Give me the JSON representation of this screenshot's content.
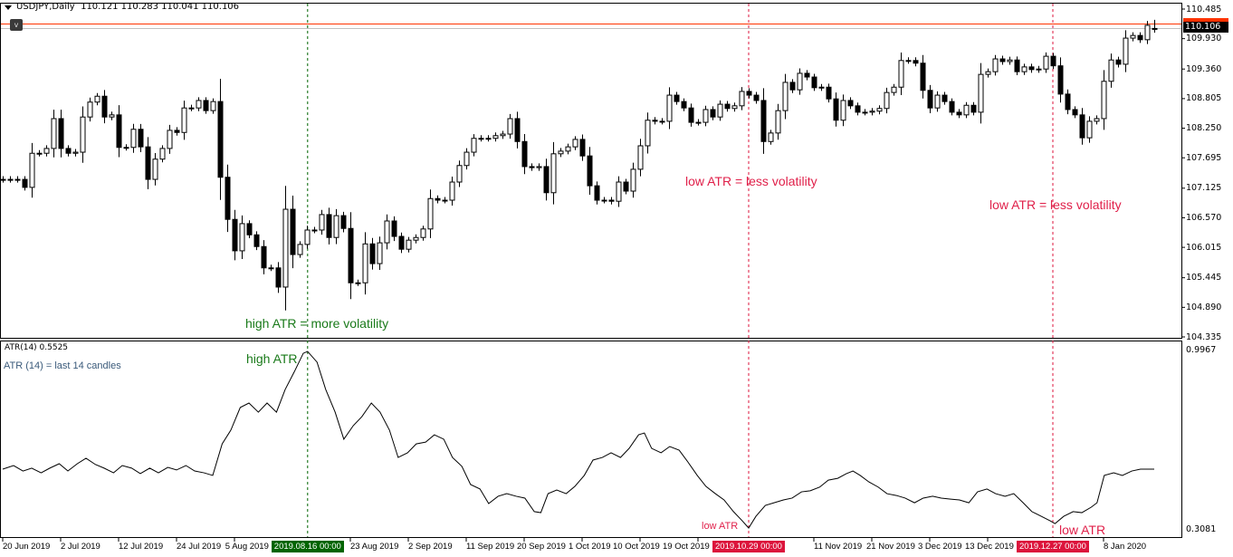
{
  "header": {
    "symbol_timeframe": "USDJPY,Daily",
    "ohlc": "110.121 110.283 110.041 110.106",
    "menu_button": "v"
  },
  "colors": {
    "ask_line": "#ff3300",
    "bid_line": "#c0c0c0",
    "green_marker": "#006400",
    "red_marker": "#dc143c",
    "annotation_green": "#1a7a1a",
    "annotation_red": "#e0204a"
  },
  "price_axis": {
    "ticks": [
      "110.485",
      "109.930",
      "109.360",
      "108.805",
      "108.250",
      "107.695",
      "107.125",
      "106.570",
      "106.015",
      "105.445",
      "104.890",
      "104.335"
    ],
    "current_bid": "110.106",
    "range": [
      104.335,
      110.485
    ]
  },
  "atr_pane": {
    "title": "ATR(14) 0.5525",
    "note": "ATR (14) = last 14 candles",
    "axis_ticks": [
      "0.9967",
      "0.3081"
    ],
    "range": [
      0.3081,
      0.9967
    ]
  },
  "time_axis": {
    "labels": [
      {
        "bar": 0,
        "text": "20 Jun 2019"
      },
      {
        "bar": 8,
        "text": "2 Jul 2019"
      },
      {
        "bar": 16,
        "text": "12 Jul 2019"
      },
      {
        "bar": 24,
        "text": "24 Jul 2019"
      },
      {
        "bar": 32,
        "text": "5 Aug 2019"
      },
      {
        "bar": 48,
        "text": "23 Aug 2019"
      },
      {
        "bar": 56,
        "text": "2 Sep 2019"
      },
      {
        "bar": 64,
        "text": "11 Sep 2019"
      },
      {
        "bar": 72,
        "text": "20 Sep 2019"
      },
      {
        "bar": 80,
        "text": "1 Oct 2019"
      },
      {
        "bar": 88,
        "text": "10 Oct 2019"
      },
      {
        "bar": 96,
        "text": "19 Oct 2019"
      },
      {
        "bar": 112,
        "text": "11 Nov 2019"
      },
      {
        "bar": 120,
        "text": "21 Nov 2019"
      },
      {
        "bar": 128,
        "text": "3 Dec 2019"
      },
      {
        "bar": 136,
        "text": "13 Dec 2019"
      },
      {
        "bar": 152,
        "text": "8 Jan 2020"
      }
    ],
    "markers": [
      {
        "bar": 42.1,
        "text": "2019.08.16 00:00",
        "color": "#006400"
      },
      {
        "bar": 103,
        "text": "2019.10.29 00:00",
        "color": "#dc143c"
      },
      {
        "bar": 145,
        "text": "2019.12.27 00:00",
        "color": "#dc143c"
      }
    ]
  },
  "annotations": {
    "high_vol": "high ATR = more volatility",
    "low_vol_1": "low ATR = less volatility",
    "low_vol_2": "low ATR = less volatility",
    "high_atr": "high ATR",
    "low_atr_1": "low ATR",
    "low_atr_2": "low ATR"
  },
  "chart_data": [
    {
      "type": "candlestick",
      "title": "USDJPY,Daily",
      "ylim": [
        104.335,
        110.485
      ],
      "last_bar": {
        "open": 110.121,
        "high": 110.283,
        "low": 110.041,
        "close": 110.106
      },
      "closes": [
        107.29,
        107.29,
        107.29,
        107.14,
        107.78,
        107.78,
        107.87,
        108.43,
        107.87,
        107.78,
        107.8,
        108.46,
        108.74,
        108.85,
        108.46,
        108.5,
        107.89,
        107.89,
        108.23,
        107.9,
        107.29,
        107.67,
        107.87,
        108.21,
        108.17,
        108.63,
        108.63,
        108.77,
        108.58,
        108.75,
        107.33,
        106.54,
        105.95,
        106.46,
        106.25,
        106.03,
        105.63,
        105.63,
        105.27,
        106.73,
        105.88,
        106.07,
        106.34,
        106.34,
        106.63,
        106.2,
        106.61,
        106.37,
        105.35,
        105.35,
        106.08,
        105.71,
        106.1,
        106.51,
        106.22,
        105.98,
        106.15,
        106.2,
        106.36,
        106.93,
        106.9,
        106.9,
        107.24,
        107.55,
        107.8,
        108.06,
        108.06,
        108.06,
        108.11,
        108.14,
        108.43,
        108.0,
        107.53,
        107.51,
        107.53,
        107.04,
        107.77,
        107.82,
        107.9,
        108.04,
        107.73,
        107.17,
        106.9,
        106.9,
        106.88,
        107.24,
        107.07,
        107.48,
        107.92,
        108.4,
        108.38,
        108.38,
        108.87,
        108.75,
        108.63,
        108.36,
        108.36,
        108.6,
        108.46,
        108.7,
        108.62,
        108.67,
        108.94,
        108.87,
        108.77,
        108.0,
        108.16,
        108.58,
        109.11,
        108.97,
        109.28,
        109.21,
        109.01,
        109.02,
        108.8,
        108.4,
        108.77,
        108.67,
        108.55,
        108.55,
        108.57,
        108.62,
        108.92,
        109.02,
        109.52,
        109.52,
        109.47,
        108.96,
        108.63,
        108.87,
        108.75,
        108.55,
        108.5,
        108.68,
        108.55,
        109.26,
        109.31,
        109.55,
        109.5,
        109.53,
        109.31,
        109.4,
        109.35,
        109.36,
        109.6,
        109.42,
        108.89,
        108.6,
        108.5,
        108.07,
        108.38,
        108.43,
        109.13,
        109.53,
        109.45,
        109.94,
        109.99,
        109.91,
        110.18,
        110.106
      ]
    },
    {
      "type": "line",
      "title": "ATR(14) 0.5525",
      "ylim": [
        0.3081,
        0.9967
      ],
      "points": [
        [
          0,
          0.541
        ],
        [
          1.5,
          0.555
        ],
        [
          2.8,
          0.534
        ],
        [
          4,
          0.545
        ],
        [
          5.3,
          0.527
        ],
        [
          6.5,
          0.545
        ],
        [
          7.8,
          0.562
        ],
        [
          9,
          0.534
        ],
        [
          10.3,
          0.562
        ],
        [
          11.5,
          0.583
        ],
        [
          12.8,
          0.559
        ],
        [
          14,
          0.545
        ],
        [
          15.3,
          0.527
        ],
        [
          16.5,
          0.555
        ],
        [
          17.8,
          0.545
        ],
        [
          19,
          0.524
        ],
        [
          20.3,
          0.545
        ],
        [
          21.5,
          0.527
        ],
        [
          22.8,
          0.548
        ],
        [
          24,
          0.538
        ],
        [
          25.3,
          0.555
        ],
        [
          26.5,
          0.534
        ],
        [
          27.8,
          0.527
        ],
        [
          29,
          0.517
        ],
        [
          30.3,
          0.638
        ],
        [
          31.5,
          0.691
        ],
        [
          32.8,
          0.778
        ],
        [
          34,
          0.795
        ],
        [
          35.3,
          0.76
        ],
        [
          36.5,
          0.795
        ],
        [
          37.8,
          0.76
        ],
        [
          39,
          0.847
        ],
        [
          40.3,
          0.917
        ],
        [
          41.5,
          0.986
        ],
        [
          42.1,
          0.993
        ],
        [
          43.4,
          0.952
        ],
        [
          44.6,
          0.847
        ],
        [
          45.9,
          0.76
        ],
        [
          47.1,
          0.656
        ],
        [
          48.4,
          0.708
        ],
        [
          49.6,
          0.743
        ],
        [
          50.9,
          0.795
        ],
        [
          52.1,
          0.76
        ],
        [
          53.4,
          0.691
        ],
        [
          54.6,
          0.586
        ],
        [
          55.9,
          0.604
        ],
        [
          57.1,
          0.638
        ],
        [
          58.4,
          0.645
        ],
        [
          59.6,
          0.673
        ],
        [
          60.9,
          0.656
        ],
        [
          62.1,
          0.586
        ],
        [
          63.4,
          0.552
        ],
        [
          64.6,
          0.482
        ],
        [
          65.9,
          0.465
        ],
        [
          67.1,
          0.409
        ],
        [
          68.4,
          0.437
        ],
        [
          69.6,
          0.447
        ],
        [
          70.9,
          0.437
        ],
        [
          72.1,
          0.43
        ],
        [
          73.4,
          0.378
        ],
        [
          74.3,
          0.374
        ],
        [
          75.3,
          0.447
        ],
        [
          76.5,
          0.461
        ],
        [
          77.8,
          0.447
        ],
        [
          79,
          0.475
        ],
        [
          80.3,
          0.517
        ],
        [
          81.5,
          0.576
        ],
        [
          82.8,
          0.586
        ],
        [
          84,
          0.604
        ],
        [
          85.3,
          0.586
        ],
        [
          86.5,
          0.621
        ],
        [
          87.8,
          0.673
        ],
        [
          88.6,
          0.68
        ],
        [
          89.6,
          0.621
        ],
        [
          90.9,
          0.604
        ],
        [
          92.1,
          0.628
        ],
        [
          93.4,
          0.614
        ],
        [
          94.6,
          0.569
        ],
        [
          95.9,
          0.517
        ],
        [
          97.1,
          0.475
        ],
        [
          98.4,
          0.447
        ],
        [
          99.6,
          0.423
        ],
        [
          100.9,
          0.378
        ],
        [
          102.1,
          0.343
        ],
        [
          103,
          0.315
        ],
        [
          104,
          0.36
        ],
        [
          105.3,
          0.402
        ],
        [
          106.5,
          0.412
        ],
        [
          107.8,
          0.423
        ],
        [
          109,
          0.43
        ],
        [
          110.3,
          0.454
        ],
        [
          111.5,
          0.458
        ],
        [
          112.8,
          0.472
        ],
        [
          114,
          0.499
        ],
        [
          115.3,
          0.506
        ],
        [
          116.5,
          0.524
        ],
        [
          117.4,
          0.534
        ],
        [
          118.4,
          0.517
        ],
        [
          119.6,
          0.492
        ],
        [
          120.9,
          0.472
        ],
        [
          122.1,
          0.447
        ],
        [
          123.4,
          0.44
        ],
        [
          124.6,
          0.43
        ],
        [
          125.9,
          0.412
        ],
        [
          127.1,
          0.43
        ],
        [
          128.4,
          0.437
        ],
        [
          129.6,
          0.43
        ],
        [
          130.9,
          0.426
        ],
        [
          132.1,
          0.423
        ],
        [
          133.4,
          0.412
        ],
        [
          134.6,
          0.454
        ],
        [
          135.9,
          0.465
        ],
        [
          137.1,
          0.447
        ],
        [
          138.4,
          0.437
        ],
        [
          139.6,
          0.447
        ],
        [
          140.9,
          0.412
        ],
        [
          142.1,
          0.378
        ],
        [
          143.4,
          0.36
        ],
        [
          144.6,
          0.343
        ],
        [
          145.3,
          0.332
        ],
        [
          146.5,
          0.36
        ],
        [
          147.8,
          0.378
        ],
        [
          149,
          0.374
        ],
        [
          150.3,
          0.395
        ],
        [
          151.1,
          0.412
        ],
        [
          152.1,
          0.517
        ],
        [
          153.4,
          0.527
        ],
        [
          154.6,
          0.517
        ],
        [
          155.9,
          0.534
        ],
        [
          157.1,
          0.541
        ],
        [
          159,
          0.541
        ]
      ]
    }
  ]
}
